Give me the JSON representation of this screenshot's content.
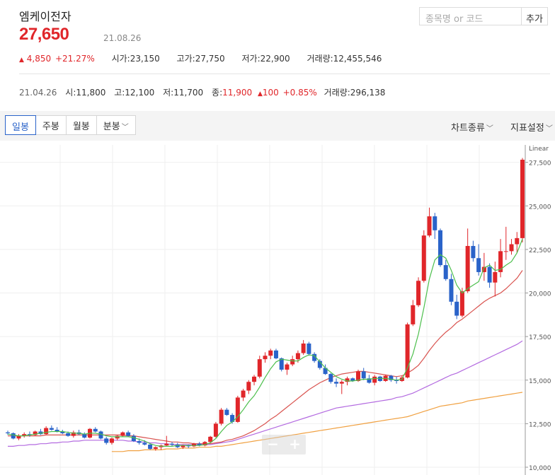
{
  "stock": {
    "name": "엠케이전자",
    "price": "27,650",
    "date": "21.08.26",
    "change_arrow": "▲",
    "change": "4,850",
    "change_pct": "+21.27%",
    "open_label": "시가",
    "open": "23,150",
    "high_label": "고가",
    "high": "27,750",
    "low_label": "저가",
    "low": "22,900",
    "volume_label": "거래량",
    "volume": "12,455,546"
  },
  "search": {
    "placeholder": "종목명 or 코드",
    "add_label": "추가"
  },
  "hover": {
    "date": "21.04.26",
    "open_label": "시",
    "open": "11,800",
    "high_label": "고",
    "high": "12,100",
    "low_label": "저",
    "low": "11,700",
    "close_label": "종",
    "close": "11,900",
    "arrow": "▲",
    "change": "100",
    "change_pct": "+0.85%",
    "volume_label": "거래량",
    "volume": "296,138"
  },
  "toolbar": {
    "tabs": [
      "일봉",
      "주봉",
      "월봉",
      "분봉"
    ],
    "active_tab": "일봉",
    "chart_type_label": "차트종류",
    "indicator_label": "지표설정"
  },
  "zoom": {
    "minus": "−",
    "plus": "+"
  },
  "colors": {
    "up": "#e0262a",
    "down": "#2a63c9",
    "ma5": "#4cbf4c",
    "ma20": "#d9534f",
    "ma60": "#b36ae0",
    "ma120": "#f0a040"
  },
  "chart_data": {
    "type": "candlestick",
    "scale_label": "Linear",
    "y_ticks": [
      "27,500",
      "25,000",
      "22,500",
      "20,000",
      "17,500",
      "15,000",
      "12,500",
      "10,000"
    ],
    "y_tick_values": [
      27500,
      25000,
      22500,
      20000,
      17500,
      15000,
      12500,
      10000
    ],
    "ylim": [
      10000,
      28500
    ],
    "candles": [
      [
        12000,
        12100,
        11850,
        11950
      ],
      [
        11950,
        12000,
        11600,
        11650
      ],
      [
        11650,
        11900,
        11550,
        11800
      ],
      [
        11800,
        12000,
        11700,
        11900
      ],
      [
        11900,
        12050,
        11750,
        11850
      ],
      [
        11850,
        12100,
        11800,
        12050
      ],
      [
        12050,
        12200,
        11850,
        11900
      ],
      [
        11900,
        12350,
        11850,
        12250
      ],
      [
        12250,
        12400,
        12100,
        12150
      ],
      [
        12150,
        12300,
        12000,
        12050
      ],
      [
        12050,
        12150,
        11900,
        11950
      ],
      [
        11950,
        12050,
        11750,
        11800
      ],
      [
        11800,
        12100,
        11700,
        12000
      ],
      [
        12000,
        12150,
        11850,
        11900
      ],
      [
        11900,
        12000,
        11650,
        11700
      ],
      [
        11700,
        12250,
        11650,
        12200
      ],
      [
        12200,
        12300,
        12000,
        12050
      ],
      [
        12050,
        12100,
        11600,
        11650
      ],
      [
        11650,
        11750,
        11300,
        11400
      ],
      [
        11400,
        11700,
        11300,
        11650
      ],
      [
        11650,
        11850,
        11550,
        11800
      ],
      [
        11800,
        12050,
        11750,
        12000
      ],
      [
        12000,
        12100,
        11750,
        11800
      ],
      [
        11800,
        11900,
        11450,
        11500
      ],
      [
        11500,
        11650,
        11300,
        11400
      ],
      [
        11400,
        11550,
        11250,
        11300
      ],
      [
        11300,
        11350,
        11000,
        11050
      ],
      [
        11050,
        11200,
        10950,
        11150
      ],
      [
        11150,
        11300,
        11000,
        11250
      ],
      [
        11250,
        11800,
        11200,
        11350
      ],
      [
        11350,
        11450,
        11200,
        11300
      ],
      [
        11300,
        11400,
        11100,
        11150
      ],
      [
        11150,
        11300,
        11050,
        11250
      ],
      [
        11250,
        11300,
        11100,
        11200
      ],
      [
        11200,
        11400,
        11150,
        11350
      ],
      [
        11350,
        11450,
        11200,
        11250
      ],
      [
        11250,
        11500,
        11200,
        11450
      ],
      [
        11450,
        11800,
        11400,
        11750
      ],
      [
        11750,
        12600,
        11700,
        12500
      ],
      [
        12500,
        13400,
        12400,
        13300
      ],
      [
        13300,
        13400,
        12950,
        13000
      ],
      [
        13000,
        13100,
        12500,
        12600
      ],
      [
        12600,
        14100,
        12550,
        14000
      ],
      [
        14000,
        14500,
        13800,
        14400
      ],
      [
        14400,
        15000,
        14200,
        14900
      ],
      [
        14900,
        15300,
        14700,
        15200
      ],
      [
        15200,
        16400,
        15100,
        16200
      ],
      [
        16200,
        16600,
        16000,
        16400
      ],
      [
        16400,
        16800,
        16200,
        16700
      ],
      [
        16700,
        16800,
        16200,
        16250
      ],
      [
        16250,
        16300,
        15500,
        15600
      ],
      [
        15600,
        16000,
        15300,
        15900
      ],
      [
        15900,
        16400,
        15800,
        16200
      ],
      [
        16200,
        16700,
        16000,
        16550
      ],
      [
        16550,
        17300,
        16450,
        17100
      ],
      [
        17100,
        17200,
        16400,
        16500
      ],
      [
        16500,
        16600,
        16000,
        16100
      ],
      [
        16100,
        16200,
        15600,
        15700
      ],
      [
        15700,
        15900,
        15300,
        15350
      ],
      [
        15350,
        15400,
        14800,
        14900
      ],
      [
        14900,
        15100,
        14600,
        14800
      ],
      [
        14800,
        15000,
        14200,
        14900
      ],
      [
        14900,
        15200,
        14700,
        15100
      ],
      [
        15100,
        15150,
        14900,
        14950
      ],
      [
        14950,
        15600,
        14900,
        15500
      ],
      [
        15500,
        15700,
        15000,
        15100
      ],
      [
        15100,
        15300,
        14800,
        14850
      ],
      [
        14850,
        15300,
        14700,
        15200
      ],
      [
        15200,
        15250,
        14900,
        14950
      ],
      [
        14950,
        15300,
        14900,
        15250
      ],
      [
        15250,
        15300,
        14900,
        15000
      ],
      [
        15000,
        15200,
        14800,
        14950
      ],
      [
        14950,
        15250,
        14900,
        15150
      ],
      [
        15150,
        18300,
        15100,
        18200
      ],
      [
        18200,
        19600,
        18100,
        19300
      ],
      [
        19300,
        20900,
        19200,
        20700
      ],
      [
        20700,
        23600,
        20600,
        23300
      ],
      [
        23300,
        24900,
        23200,
        24400
      ],
      [
        24400,
        24600,
        23100,
        23600
      ],
      [
        23600,
        23700,
        21500,
        21600
      ],
      [
        21600,
        21900,
        20700,
        20800
      ],
      [
        20800,
        21100,
        19300,
        19500
      ],
      [
        19500,
        19900,
        18500,
        18700
      ],
      [
        18700,
        20300,
        18600,
        20100
      ],
      [
        20100,
        23700,
        20000,
        22700
      ],
      [
        22700,
        23000,
        21800,
        22000
      ],
      [
        22000,
        22800,
        21000,
        21200
      ],
      [
        21200,
        22300,
        20700,
        21500
      ],
      [
        21500,
        21700,
        20300,
        20600
      ],
      [
        20600,
        21800,
        19800,
        21200
      ],
      [
        21200,
        23100,
        20900,
        22400
      ],
      [
        22400,
        23800,
        21900,
        22400
      ],
      [
        22400,
        23100,
        22200,
        22800
      ],
      [
        22800,
        23500,
        22300,
        23150
      ],
      [
        23150,
        27750,
        22900,
        27650
      ]
    ],
    "ma5": [
      11900,
      11850,
      11800,
      11800,
      11850,
      11900,
      11950,
      12000,
      12050,
      12050,
      12050,
      12000,
      11950,
      11950,
      11900,
      11950,
      11950,
      11900,
      11800,
      11750,
      11750,
      11750,
      11750,
      11700,
      11600,
      11500,
      11350,
      11250,
      11200,
      11200,
      11200,
      11250,
      11250,
      11250,
      11250,
      11250,
      11300,
      11400,
      11650,
      12050,
      12400,
      12600,
      12900,
      13300,
      13750,
      14100,
      14600,
      15150,
      15650,
      16050,
      16200,
      16150,
      16100,
      16100,
      16300,
      16450,
      16400,
      16050,
      15700,
      15450,
      15200,
      15050,
      14950,
      14950,
      15000,
      15050,
      15050,
      15100,
      15100,
      15100,
      15050,
      15000,
      15050,
      15700,
      16500,
      17650,
      19150,
      20800,
      21900,
      22200,
      22000,
      21300,
      20450,
      20000,
      20250,
      20450,
      20650,
      21450,
      21600,
      21300,
      21350,
      21600,
      21800,
      22300,
      23100
    ],
    "ma20": [
      11800,
      11800,
      11800,
      11800,
      11800,
      11800,
      11800,
      11850,
      11850,
      11850,
      11850,
      11850,
      11850,
      11850,
      11850,
      11850,
      11850,
      11850,
      11850,
      11850,
      11850,
      11850,
      11800,
      11800,
      11750,
      11700,
      11650,
      11600,
      11550,
      11500,
      11450,
      11450,
      11400,
      11400,
      11350,
      11350,
      11350,
      11350,
      11400,
      11450,
      11550,
      11600,
      11700,
      11800,
      11950,
      12100,
      12300,
      12500,
      12750,
      12950,
      13200,
      13450,
      13700,
      13950,
      14200,
      14450,
      14650,
      14850,
      15000,
      15150,
      15250,
      15350,
      15400,
      15450,
      15500,
      15500,
      15450,
      15400,
      15350,
      15300,
      15250,
      15200,
      15250,
      15400,
      15600,
      15850,
      16250,
      16700,
      17100,
      17450,
      17750,
      18000,
      18300,
      18500,
      18750,
      19000,
      19250,
      19500,
      19700,
      19850,
      20000,
      20250,
      20550,
      20850,
      21300
    ],
    "ma60": [
      11200,
      11200,
      11250,
      11250,
      11300,
      11300,
      11350,
      11350,
      11400,
      11400,
      11450,
      11450,
      11500,
      11500,
      11550,
      11550,
      11550,
      11550,
      11550,
      11550,
      11550,
      11550,
      11500,
      11500,
      11450,
      11450,
      11400,
      11400,
      11350,
      11350,
      11300,
      11300,
      11300,
      11300,
      11300,
      11300,
      11300,
      11300,
      11350,
      11400,
      11450,
      11500,
      11600,
      11700,
      11800,
      11900,
      12000,
      12100,
      12200,
      12300,
      12400,
      12500,
      12600,
      12700,
      12800,
      12900,
      13000,
      13100,
      13200,
      13300,
      13400,
      13450,
      13500,
      13550,
      13600,
      13650,
      13700,
      13750,
      13800,
      13850,
      13900,
      14000,
      14050,
      14150,
      14250,
      14400,
      14550,
      14700,
      14850,
      15000,
      15150,
      15300,
      15400,
      15550,
      15700,
      15850,
      16000,
      16150,
      16300,
      16450,
      16600,
      16750,
      16900,
      17050,
      17250
    ],
    "ma120_start_index": 19,
    "ma120": [
      10900,
      10900,
      10900,
      10950,
      10950,
      10950,
      11000,
      11000,
      11000,
      11000,
      11050,
      11050,
      11050,
      11100,
      11100,
      11100,
      11150,
      11150,
      11150,
      11200,
      11200,
      11250,
      11300,
      11350,
      11400,
      11450,
      11500,
      11550,
      11600,
      11650,
      11700,
      11750,
      11800,
      11850,
      11900,
      11950,
      12000,
      12050,
      12100,
      12150,
      12200,
      12250,
      12300,
      12350,
      12400,
      12450,
      12500,
      12550,
      12600,
      12650,
      12700,
      12750,
      12800,
      12850,
      12900,
      13000,
      13100,
      13200,
      13300,
      13400,
      13500,
      13550,
      13600,
      13650,
      13700,
      13800,
      13850,
      13900,
      13950,
      14000,
      14050,
      14100,
      14150,
      14200,
      14250,
      14300
    ]
  }
}
